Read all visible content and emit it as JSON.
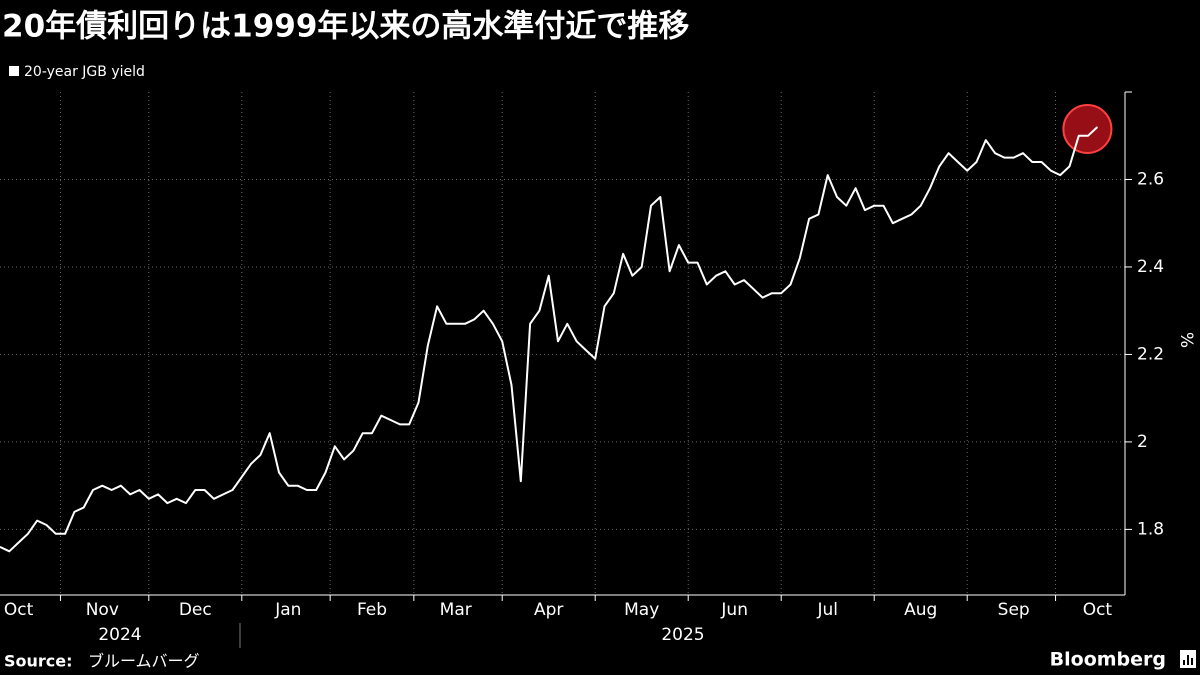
{
  "chart_data": {
    "type": "line",
    "title": "20年債利回りは1999年以来の高水準付近で推移",
    "y_axis_label": "%",
    "source_label": "Source:",
    "source": "ブルームバーグ",
    "brand": "Bloomberg",
    "years": [
      "2024",
      "2025"
    ],
    "categories": [
      null,
      null,
      "Oct",
      null,
      null,
      null,
      null,
      null,
      null,
      null,
      null,
      "Nov",
      null,
      null,
      null,
      null,
      null,
      null,
      null,
      null,
      null,
      "Dec",
      null,
      null,
      null,
      null,
      null,
      null,
      null,
      null,
      null,
      "Jan",
      null,
      null,
      null,
      null,
      null,
      null,
      null,
      null,
      "Feb",
      null,
      null,
      null,
      null,
      null,
      null,
      null,
      null,
      "Mar",
      null,
      null,
      null,
      null,
      null,
      null,
      null,
      null,
      null,
      "Apr",
      null,
      null,
      null,
      null,
      null,
      null,
      null,
      null,
      null,
      "May",
      null,
      null,
      null,
      null,
      null,
      null,
      null,
      null,
      null,
      "Jun",
      null,
      null,
      null,
      null,
      null,
      null,
      null,
      null,
      null,
      "Jul",
      null,
      null,
      null,
      null,
      null,
      null,
      null,
      null,
      null,
      "Aug",
      null,
      null,
      null,
      null,
      null,
      null,
      null,
      null,
      null,
      "Sep",
      null,
      null,
      null,
      null,
      null,
      null,
      null,
      null,
      "Oct"
    ],
    "series": [
      {
        "name": "20-year JGB yield",
        "color": "#ffffff",
        "values": [
          1.76,
          1.75,
          1.77,
          1.79,
          1.82,
          1.81,
          1.79,
          1.79,
          1.84,
          1.85,
          1.89,
          1.9,
          1.89,
          1.9,
          1.88,
          1.89,
          1.87,
          1.88,
          1.86,
          1.87,
          1.86,
          1.89,
          1.89,
          1.87,
          1.88,
          1.89,
          1.92,
          1.95,
          1.97,
          2.02,
          1.93,
          1.9,
          1.9,
          1.89,
          1.89,
          1.93,
          1.99,
          1.96,
          1.98,
          2.02,
          2.02,
          2.06,
          2.05,
          2.04,
          2.04,
          2.09,
          2.22,
          2.31,
          2.27,
          2.27,
          2.27,
          2.28,
          2.3,
          2.27,
          2.23,
          2.13,
          1.91,
          2.27,
          2.3,
          2.38,
          2.23,
          2.27,
          2.23,
          2.21,
          2.19,
          2.31,
          2.34,
          2.43,
          2.38,
          2.4,
          2.54,
          2.56,
          2.39,
          2.45,
          2.41,
          2.41,
          2.36,
          2.38,
          2.39,
          2.36,
          2.37,
          2.35,
          2.33,
          2.34,
          2.34,
          2.36,
          2.42,
          2.51,
          2.52,
          2.61,
          2.56,
          2.54,
          2.58,
          2.53,
          2.54,
          2.54,
          2.5,
          2.51,
          2.52,
          2.54,
          2.58,
          2.63,
          2.66,
          2.64,
          2.62,
          2.64,
          2.69,
          2.66,
          2.65,
          2.65,
          2.66,
          2.64,
          2.64,
          2.62,
          2.61,
          2.63,
          2.7,
          2.7,
          2.72
        ]
      }
    ],
    "ylim": [
      1.65,
      2.8
    ],
    "yticks": [
      1.8,
      2.0,
      2.2,
      2.4,
      2.6
    ],
    "grid": true
  }
}
